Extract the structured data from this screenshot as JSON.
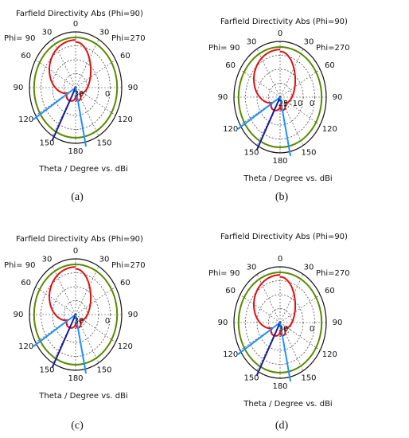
{
  "panels": [
    {
      "title": "Farfield Directivity Abs (Phi=90)",
      "phi_left": "Phi= 90",
      "phi_right": "Phi=270",
      "angle_labels": [
        "0",
        "30",
        "60",
        "90",
        "120",
        "150",
        "180",
        "150",
        "120",
        "90",
        "60",
        "30"
      ],
      "radial_labels": [
        "30",
        "0"
      ],
      "axis_label": "Theta / Degree vs. dBi",
      "caption": "(a)"
    },
    {
      "title": "Farfield Directivity Abs (Phi=90)",
      "phi_left": "Phi= 90",
      "phi_right": "Phi=270",
      "angle_labels": [
        "0",
        "30",
        "60",
        "90",
        "120",
        "150",
        "180",
        "150",
        "120",
        "90",
        "60",
        "30"
      ],
      "radial_labels": [
        "25",
        "10",
        "0"
      ],
      "axis_label": "Theta / Degree vs. dBi",
      "caption": "(b)"
    },
    {
      "title": "Farfield Directivity Abs (Phi=90)",
      "phi_left": "Phi= 90",
      "phi_right": "Phi=270",
      "angle_labels": [
        "0",
        "30",
        "60",
        "90",
        "120",
        "150",
        "180",
        "150",
        "120",
        "90",
        "60",
        "30"
      ],
      "radial_labels": [
        "30",
        "0"
      ],
      "axis_label": "Theta / Degree vs. dBi",
      "caption": "(c)"
    },
    {
      "title": "Farfield Directivity Abs (Phi=90)",
      "phi_left": "Phi= 90",
      "phi_right": "Phi=270",
      "angle_labels": [
        "0",
        "30",
        "60",
        "90",
        "120",
        "150",
        "180",
        "150",
        "120",
        "90",
        "60",
        "30"
      ],
      "radial_labels": [
        "30",
        "0"
      ],
      "axis_label": "Theta / Degree vs. dBi",
      "caption": "(d)"
    }
  ]
}
